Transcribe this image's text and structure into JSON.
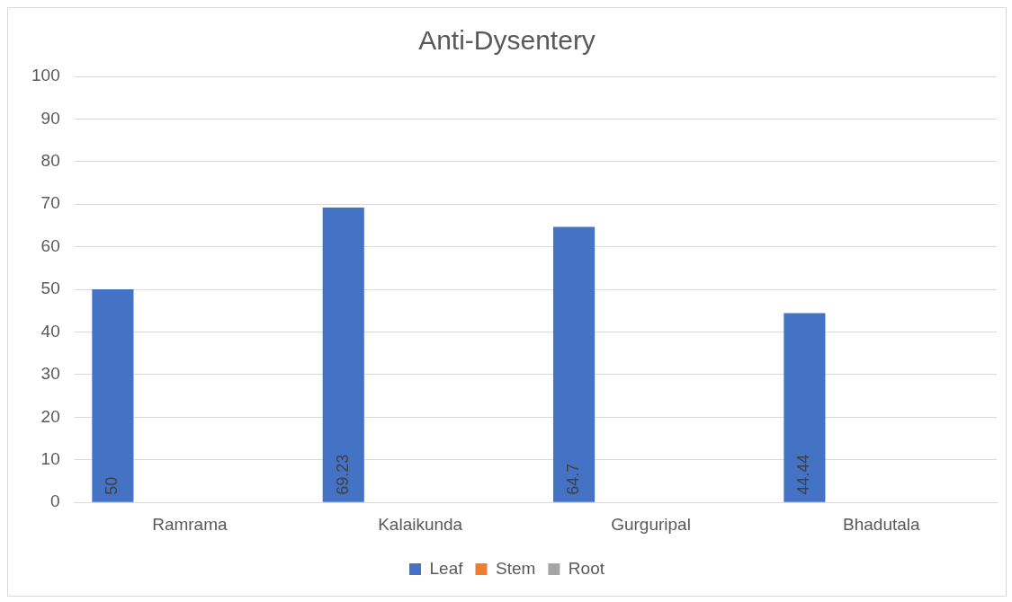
{
  "chart_data": {
    "type": "bar",
    "title": "Anti-Dysentery",
    "categories": [
      "Ramrama",
      "Kalaikunda",
      "Gurguripal",
      "Bhadutala"
    ],
    "series": [
      {
        "name": "Leaf",
        "color": "#4472c4",
        "values": [
          50,
          69.23,
          64.7,
          44.44
        ]
      },
      {
        "name": "Stem",
        "color": "#ed7d31",
        "values": [
          null,
          null,
          null,
          null
        ]
      },
      {
        "name": "Root",
        "color": "#a5a5a5",
        "values": [
          null,
          null,
          null,
          null
        ]
      }
    ],
    "ylim": [
      0,
      100
    ],
    "yticks": [
      0,
      10,
      20,
      30,
      40,
      50,
      60,
      70,
      80,
      90,
      100
    ],
    "grid": "y",
    "legend": "bottom",
    "data_labels": true
  }
}
